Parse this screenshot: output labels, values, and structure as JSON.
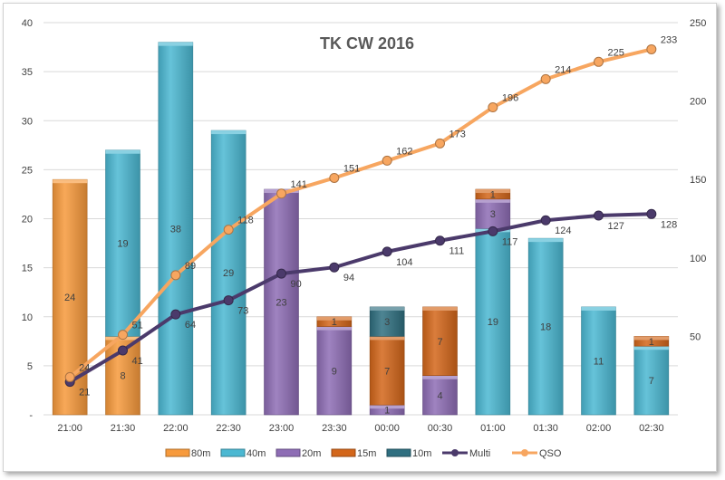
{
  "chart_data": {
    "type": "bar+line",
    "title": "TK CW 2016",
    "categories": [
      "21:00",
      "21:30",
      "22:00",
      "22:30",
      "23:00",
      "23:30",
      "00:00",
      "00:30",
      "01:00",
      "01:30",
      "02:00",
      "02:30"
    ],
    "stacked": true,
    "series": [
      {
        "name": "80m",
        "type": "bar",
        "color": "#f79a3c",
        "values": [
          24,
          8,
          0,
          0,
          0,
          0,
          0,
          0,
          0,
          0,
          0,
          0
        ]
      },
      {
        "name": "40m",
        "type": "bar",
        "color": "#4bb8d2",
        "values": [
          0,
          19,
          38,
          29,
          0,
          0,
          0,
          0,
          19,
          18,
          11,
          7
        ]
      },
      {
        "name": "20m",
        "type": "bar",
        "color": "#8e6db5",
        "values": [
          0,
          0,
          0,
          0,
          23,
          9,
          1,
          4,
          3,
          0,
          0,
          0
        ]
      },
      {
        "name": "15m",
        "type": "bar",
        "color": "#d3661a",
        "values": [
          0,
          0,
          0,
          0,
          0,
          1,
          7,
          7,
          1,
          0,
          0,
          1
        ]
      },
      {
        "name": "10m",
        "type": "bar",
        "color": "#2f6f80",
        "values": [
          0,
          0,
          0,
          0,
          0,
          0,
          3,
          0,
          0,
          0,
          0,
          0
        ]
      },
      {
        "name": "Multi",
        "type": "line",
        "axis": "secondary",
        "color": "#4b3a6b",
        "values": [
          21,
          41,
          64,
          73,
          90,
          94,
          104,
          111,
          117,
          124,
          127,
          128
        ]
      },
      {
        "name": "QSO",
        "type": "line",
        "axis": "secondary",
        "color": "#f7a660",
        "values": [
          24,
          51,
          89,
          118,
          141,
          151,
          162,
          173,
          196,
          214,
          225,
          233
        ]
      }
    ],
    "ylim": [
      0,
      40
    ],
    "yticks": [
      "-",
      "5",
      "10",
      "15",
      "20",
      "25",
      "30",
      "35",
      "40"
    ],
    "y2lim": [
      0,
      250
    ],
    "y2ticks": [
      "50",
      "100",
      "150",
      "200",
      "250"
    ],
    "grid": true,
    "legend": "bottom"
  }
}
